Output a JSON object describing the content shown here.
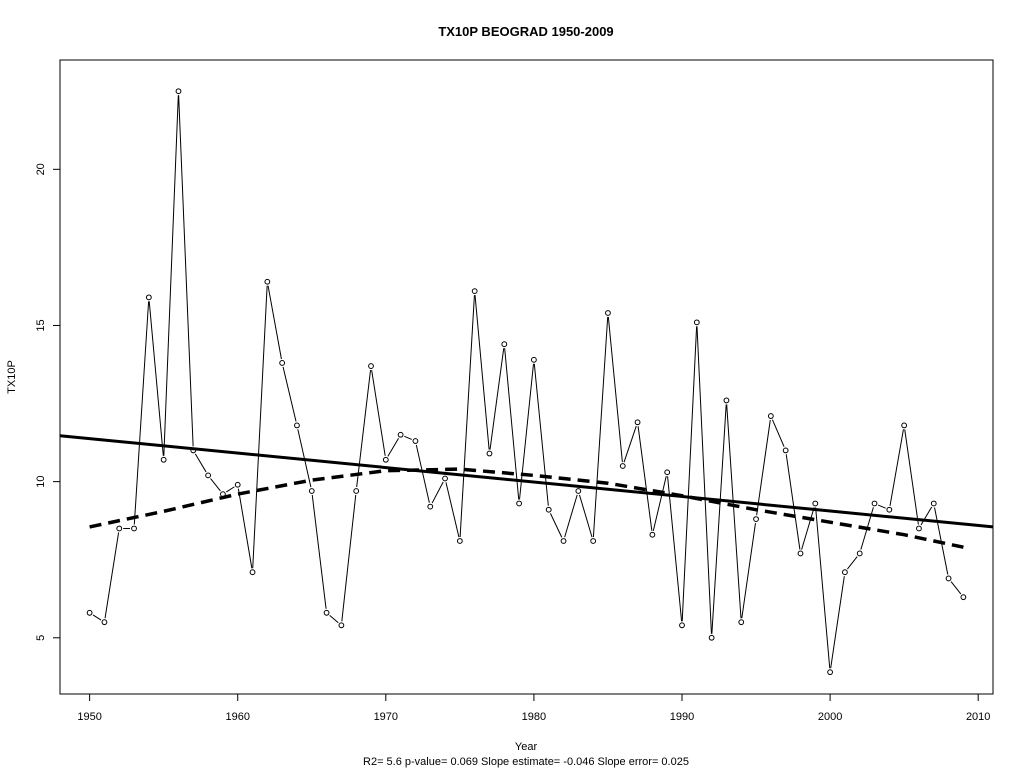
{
  "chart_data": {
    "type": "line",
    "title": "TX10P   BEOGRAD 1950-2009",
    "xlabel": "Year",
    "ylabel": "TX10P",
    "footnote": "R2= 5.6  p-value= 0.069  Slope estimate= -0.046  Slope error= 0.025",
    "xlim": [
      1948,
      2011
    ],
    "ylim": [
      3.2,
      23.5
    ],
    "x_ticks": [
      1950,
      1960,
      1970,
      1980,
      1990,
      2000,
      2010
    ],
    "y_ticks": [
      5,
      10,
      15,
      20
    ],
    "grid": false,
    "series": [
      {
        "style": "line-with-open-circles",
        "color": "#000000",
        "x": [
          1950,
          1951,
          1952,
          1953,
          1954,
          1955,
          1956,
          1957,
          1958,
          1959,
          1960,
          1961,
          1962,
          1963,
          1964,
          1965,
          1966,
          1967,
          1968,
          1969,
          1970,
          1971,
          1972,
          1973,
          1974,
          1975,
          1976,
          1977,
          1978,
          1979,
          1980,
          1981,
          1982,
          1983,
          1984,
          1985,
          1986,
          1987,
          1988,
          1989,
          1990,
          1991,
          1992,
          1993,
          1994,
          1995,
          1996,
          1997,
          1998,
          1999,
          2000,
          2001,
          2002,
          2003,
          2004,
          2005,
          2006,
          2007,
          2008,
          2009
        ],
        "y": [
          5.8,
          5.5,
          8.5,
          8.5,
          15.9,
          10.7,
          22.5,
          11.0,
          10.2,
          9.6,
          9.9,
          7.1,
          16.4,
          13.8,
          11.8,
          9.7,
          5.8,
          5.4,
          9.7,
          13.7,
          10.7,
          11.5,
          11.3,
          9.2,
          10.1,
          8.1,
          16.1,
          10.9,
          14.4,
          9.3,
          13.9,
          9.1,
          8.1,
          9.7,
          8.1,
          15.4,
          10.5,
          11.9,
          8.3,
          10.3,
          5.4,
          15.1,
          5.0,
          12.6,
          5.5,
          8.8,
          12.1,
          11.0,
          7.7,
          9.3,
          3.9,
          7.1,
          7.7,
          9.3,
          9.1,
          11.8,
          8.5,
          9.3,
          6.9,
          6.3
        ]
      },
      {
        "style": "solid-thick",
        "color": "#000000",
        "x": [
          1948,
          2011
        ],
        "y": [
          11.47,
          8.55
        ]
      },
      {
        "style": "dashed-thick",
        "color": "#000000",
        "x": [
          1950,
          1955,
          1960,
          1965,
          1970,
          1975,
          1980,
          1985,
          1990,
          1995,
          2000,
          2005,
          2009
        ],
        "y": [
          8.55,
          9.05,
          9.6,
          10.05,
          10.35,
          10.4,
          10.2,
          9.95,
          9.55,
          9.1,
          8.7,
          8.3,
          7.9
        ]
      }
    ]
  }
}
